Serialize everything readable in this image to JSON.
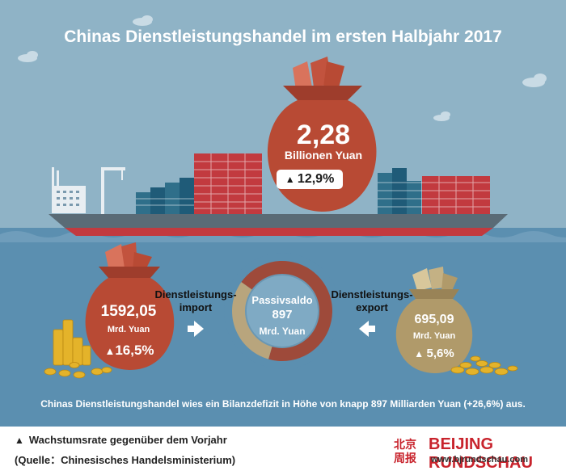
{
  "title": "Chinas Dienstleistungshandel im ersten Halbjahr 2017",
  "colors": {
    "sky": "#8fb3c6",
    "sea": "#5b8fb0",
    "bag_red": "#b84a34",
    "bag_gold": "#b09a6a",
    "ring_red": "#9e4a3a",
    "ring_beige": "#b8a57d"
  },
  "total": {
    "value": "2,28",
    "unit": "Billionen Yuan",
    "growth": "12,9%"
  },
  "import": {
    "label": "Dienstleistungs-\nimport",
    "value": "1592,05",
    "unit": "Mrd. Yuan",
    "growth": "16,5%"
  },
  "export": {
    "label": "Dienstleistungs-\nexport",
    "value": "695,09",
    "unit": "Mrd. Yuan",
    "growth": "5,6%"
  },
  "balance": {
    "label": "Passivsaldo",
    "value": "897",
    "unit": "Mrd. Yuan"
  },
  "summary": "Chinas Dienstleistungshandel wies ein Bilanzdefizit in Höhe von knapp 897 Milliarden Yuan (+26,6%) aus.",
  "legend": "Wachstumsrate gegenüber dem Vorjahr",
  "source": "(Quelle：Chinesisches Handelsministerium)",
  "brand": {
    "name": "BEIJING RUNDSCHAU",
    "url": "www.bjrundschau.com",
    "logo_chars": "北京周报"
  },
  "chart_data": {
    "type": "pie",
    "title": "Chinas Dienstleistungshandel im ersten Halbjahr 2017",
    "categories": [
      "Dienstleistungsimport",
      "Dienstleistungsexport"
    ],
    "values": [
      1592.05,
      695.09
    ],
    "growth_percent": [
      16.5,
      5.6
    ],
    "total": 2.28,
    "total_growth_percent": 12.9,
    "balance": 897,
    "balance_growth_percent": 26.6,
    "unit": "Mrd. Yuan"
  }
}
